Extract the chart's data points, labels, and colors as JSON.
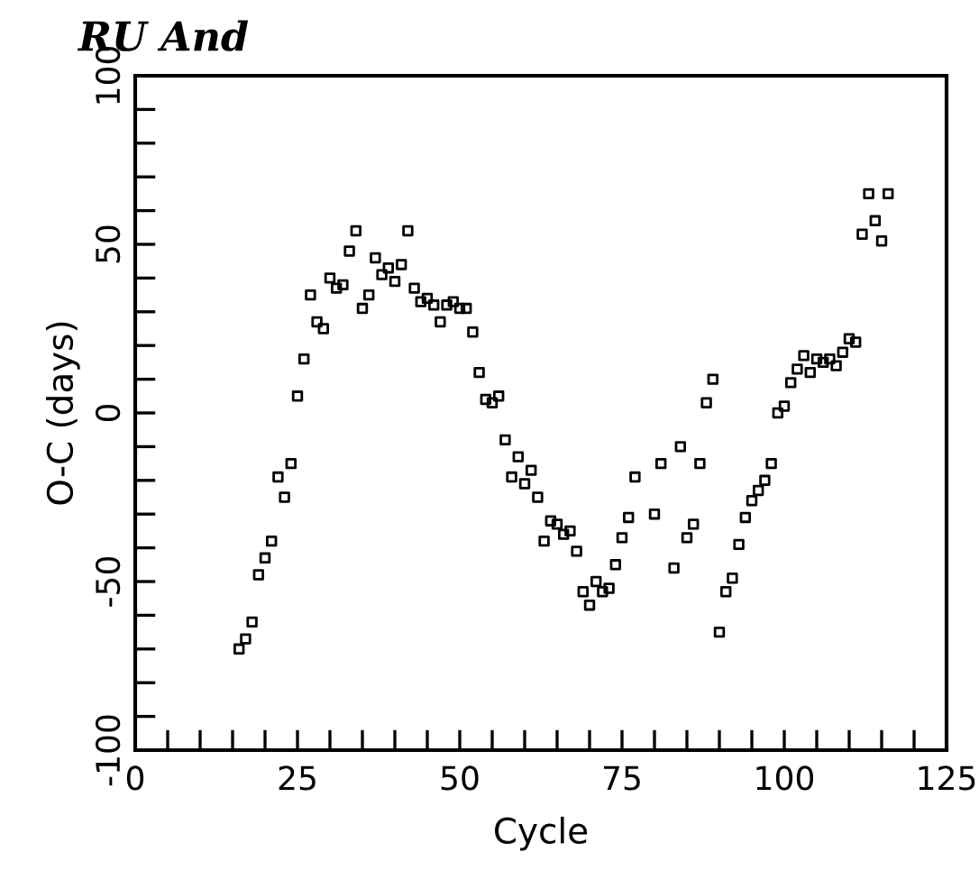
{
  "chart_data": {
    "type": "scatter",
    "title": "RU And",
    "xlabel": "Cycle",
    "ylabel": "O-C (days)",
    "x": [
      16,
      17,
      18,
      19,
      20,
      21,
      22,
      23,
      24,
      25,
      26,
      27,
      28,
      29,
      30,
      31,
      32,
      33,
      34,
      35,
      36,
      37,
      38,
      39,
      40,
      41,
      42,
      43,
      44,
      45,
      46,
      47,
      48,
      49,
      50,
      51,
      52,
      53,
      54,
      55,
      56,
      57,
      58,
      59,
      60,
      61,
      62,
      63,
      64,
      65,
      66,
      67,
      68,
      69,
      70,
      71,
      72,
      73,
      74,
      75,
      76,
      77,
      80,
      81,
      83,
      84,
      85,
      86,
      87,
      88,
      89,
      90,
      91,
      92,
      93,
      94,
      95,
      96,
      97,
      98,
      99,
      100,
      101,
      102,
      103,
      104,
      105,
      106,
      107,
      108,
      109,
      110,
      111,
      112,
      113,
      114,
      115,
      116
    ],
    "values": [
      -70,
      -67,
      -62,
      -48,
      -43,
      -38,
      -19,
      -25,
      -15,
      5,
      16,
      35,
      27,
      25,
      40,
      37,
      38,
      48,
      54,
      31,
      35,
      46,
      41,
      43,
      39,
      44,
      54,
      37,
      33,
      34,
      32,
      27,
      32,
      33,
      31,
      31,
      24,
      12,
      4,
      3,
      5,
      -8,
      -19,
      -13,
      -21,
      -17,
      -25,
      -38,
      -32,
      -33,
      -36,
      -35,
      -41,
      -53,
      -57,
      -50,
      -53,
      -52,
      -45,
      -37,
      -31,
      -19,
      -30,
      -15,
      -46,
      -10,
      -37,
      -33,
      -15,
      3,
      10,
      -65,
      -53,
      -49,
      -39,
      -31,
      -26,
      -23,
      -20,
      -15,
      0,
      2,
      9,
      13,
      17,
      12,
      16,
      15,
      16,
      14,
      18,
      22,
      21,
      53,
      65,
      57,
      51,
      65
    ],
    "color": "#000000",
    "marker": "square",
    "xlim": [
      0,
      125
    ],
    "ylim": [
      -100,
      100
    ],
    "xticks": [
      0,
      {
        "value": 5,
        "label": null
      },
      {
        "value": 10,
        "label": null
      },
      {
        "value": 15,
        "label": null
      },
      {
        "value": 20,
        "label": null
      },
      25,
      {
        "value": 30,
        "label": null
      },
      {
        "value": 35,
        "label": null
      },
      {
        "value": 40,
        "label": null
      },
      {
        "value": 45,
        "label": null
      },
      50,
      {
        "value": 55,
        "label": null
      },
      {
        "value": 60,
        "label": null
      },
      {
        "value": 65,
        "label": null
      },
      {
        "value": 70,
        "label": null
      },
      75,
      {
        "value": 80,
        "label": null
      },
      {
        "value": 85,
        "label": null
      },
      {
        "value": 90,
        "label": null
      },
      {
        "value": 95,
        "label": null
      },
      100,
      {
        "value": 105,
        "label": null
      },
      {
        "value": 110,
        "label": null
      },
      {
        "value": 115,
        "label": null
      },
      {
        "value": 120,
        "label": null
      },
      125
    ],
    "yticks": [
      {
        "value": -100,
        "label": "-100"
      },
      {
        "value": -90,
        "label": null
      },
      {
        "value": -80,
        "label": null
      },
      {
        "value": -70,
        "label": null
      },
      {
        "value": -60,
        "label": null
      },
      {
        "value": -50,
        "label": "-50"
      },
      {
        "value": -40,
        "label": null
      },
      {
        "value": -30,
        "label": null
      },
      {
        "value": -20,
        "label": null
      },
      {
        "value": -10,
        "label": null
      },
      0,
      {
        "value": 10,
        "label": null
      },
      {
        "value": 20,
        "label": null
      },
      {
        "value": 30,
        "label": null
      },
      {
        "value": 40,
        "label": null
      },
      50,
      {
        "value": 60,
        "label": null
      },
      {
        "value": 70,
        "label": null
      },
      {
        "value": 80,
        "label": null
      },
      {
        "value": 90,
        "label": null
      },
      100
    ],
    "grid": false,
    "legend": false
  }
}
